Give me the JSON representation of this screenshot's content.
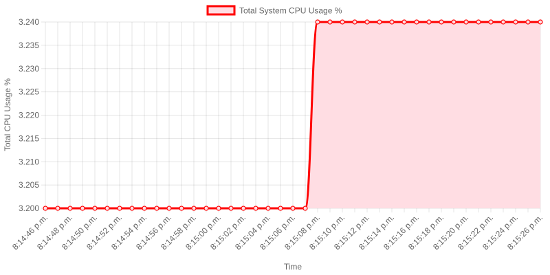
{
  "chart_data": {
    "type": "line",
    "xlabel": "Time",
    "ylabel": "Total CPU Usage %",
    "ylim": [
      3.2,
      3.24
    ],
    "y_ticks": [
      "3.240",
      "3.235",
      "3.230",
      "3.225",
      "3.220",
      "3.215",
      "3.210",
      "3.205",
      "3.200"
    ],
    "x_tick_labels": [
      "8:14:46 p.m.",
      "8:14:48 p.m.",
      "8:14:50 p.m.",
      "8:14:52 p.m.",
      "8:14:54 p.m.",
      "8:14:56 p.m.",
      "8:14:58 p.m.",
      "8:15:00 p.m.",
      "8:15:02 p.m.",
      "8:15:04 p.m.",
      "8:15:06 p.m.",
      "8:15:08 p.m.",
      "8:15:10 p.m.",
      "8:15:12 p.m.",
      "8:15:14 p.m.",
      "8:15:16 p.m.",
      "8:15:18 p.m.",
      "8:15:20 p.m.",
      "8:15:22 p.m.",
      "8:15:24 p.m.",
      "8:15:26 p.m."
    ],
    "x": [
      "8:14:46 p.m.",
      "8:14:47 p.m.",
      "8:14:48 p.m.",
      "8:14:49 p.m.",
      "8:14:50 p.m.",
      "8:14:51 p.m.",
      "8:14:52 p.m.",
      "8:14:53 p.m.",
      "8:14:54 p.m.",
      "8:14:55 p.m.",
      "8:14:56 p.m.",
      "8:14:57 p.m.",
      "8:14:58 p.m.",
      "8:14:59 p.m.",
      "8:15:00 p.m.",
      "8:15:01 p.m.",
      "8:15:02 p.m.",
      "8:15:03 p.m.",
      "8:15:04 p.m.",
      "8:15:05 p.m.",
      "8:15:06 p.m.",
      "8:15:07 p.m.",
      "8:15:08 p.m.",
      "8:15:09 p.m.",
      "8:15:10 p.m.",
      "8:15:11 p.m.",
      "8:15:12 p.m.",
      "8:15:13 p.m.",
      "8:15:14 p.m.",
      "8:15:15 p.m.",
      "8:15:16 p.m.",
      "8:15:17 p.m.",
      "8:15:18 p.m.",
      "8:15:19 p.m.",
      "8:15:20 p.m.",
      "8:15:21 p.m.",
      "8:15:22 p.m.",
      "8:15:23 p.m.",
      "8:15:24 p.m.",
      "8:15:25 p.m.",
      "8:15:26 p.m."
    ],
    "series": [
      {
        "name": "Total System CPU Usage %",
        "values": [
          3.2,
          3.2,
          3.2,
          3.2,
          3.2,
          3.2,
          3.2,
          3.2,
          3.2,
          3.2,
          3.2,
          3.2,
          3.2,
          3.2,
          3.2,
          3.2,
          3.2,
          3.2,
          3.2,
          3.2,
          3.2,
          3.2,
          3.24,
          3.24,
          3.24,
          3.24,
          3.24,
          3.24,
          3.24,
          3.24,
          3.24,
          3.24,
          3.24,
          3.24,
          3.24,
          3.24,
          3.24,
          3.24,
          3.24,
          3.24,
          3.24
        ],
        "line_color": "#ff0000",
        "fill_color": "#ffdde3"
      }
    ],
    "legend_position": "top",
    "grid": true,
    "filled": true
  }
}
